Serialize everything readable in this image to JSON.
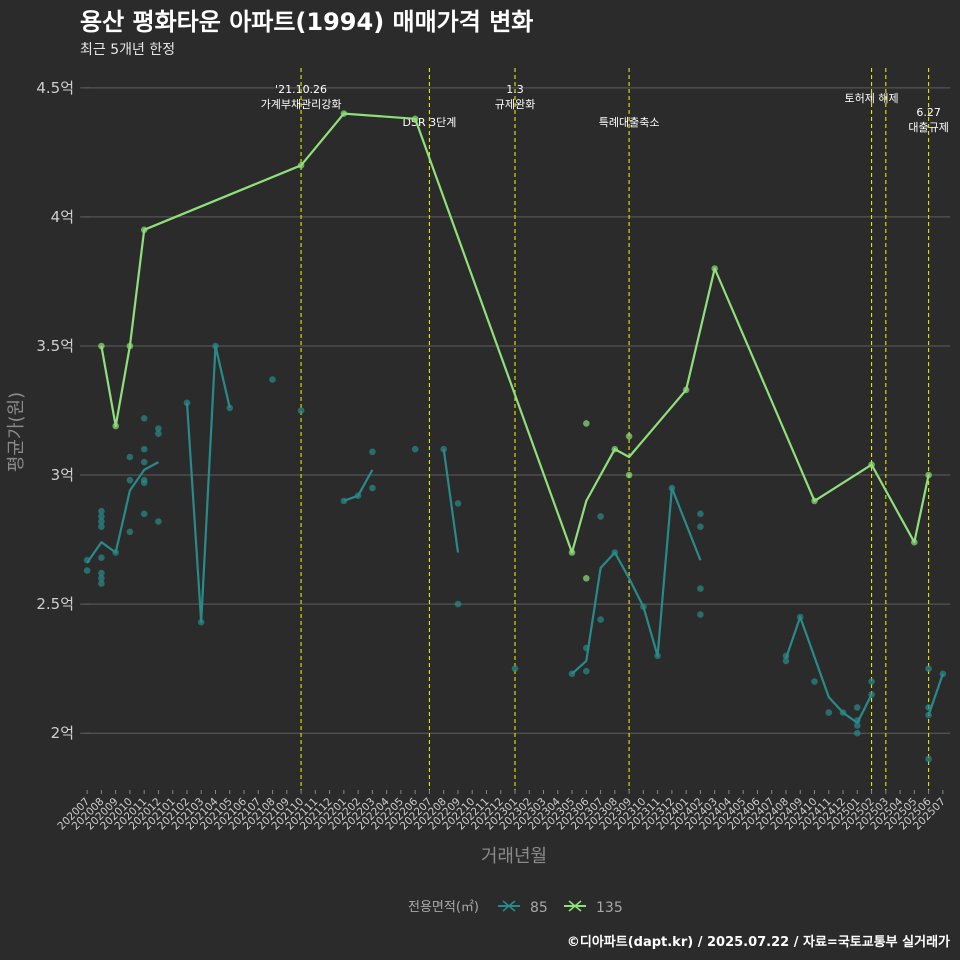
{
  "title": "용산 평화타운 아파트(1994) 매매가격 변화",
  "subtitle": "최근 5개년 한정",
  "caption": "©디아파트(dapt.kr) / 2025.07.22 / 자료=국토교통부 실거래가",
  "legend": {
    "title": "전용면적(㎡)",
    "items": [
      "85",
      "135"
    ]
  },
  "colors": {
    "background": "#2b2b2b",
    "grid": "#5e5e5e",
    "event_line": "#e6e600",
    "s85": "#2a8a8a",
    "s135": "#8fe07a"
  },
  "chart_data": {
    "type": "line",
    "xlabel": "거래년월",
    "ylabel": "평균가(원)",
    "ylim": [
      1.78,
      4.6
    ],
    "y_ticks": [
      2.0,
      2.5,
      3.0,
      3.5,
      4.0,
      4.5
    ],
    "y_tick_labels": [
      "2억",
      "2.5억",
      "3억",
      "3.5억",
      "4억",
      "4.5억"
    ],
    "x_categories": [
      "202007",
      "202008",
      "202009",
      "202010",
      "202011",
      "202012",
      "202101",
      "202102",
      "202103",
      "202104",
      "202105",
      "202106",
      "202107",
      "202108",
      "202109",
      "202110",
      "202111",
      "202112",
      "202201",
      "202202",
      "202203",
      "202204",
      "202205",
      "202206",
      "202207",
      "202208",
      "202209",
      "202210",
      "202211",
      "202212",
      "202301",
      "202302",
      "202303",
      "202304",
      "202305",
      "202306",
      "202307",
      "202308",
      "202309",
      "202310",
      "202311",
      "202312",
      "202401",
      "202402",
      "202403",
      "202404",
      "202405",
      "202406",
      "202407",
      "202408",
      "202409",
      "202410",
      "202411",
      "202412",
      "202501",
      "202502",
      "202503",
      "202504",
      "202505",
      "202506",
      "202507"
    ],
    "events": [
      {
        "x": "202110",
        "label": "'21.10.26\n가계부채관리강화",
        "level": 0
      },
      {
        "x": "202207",
        "label": "DSR 3단계",
        "level": 2
      },
      {
        "x": "202301",
        "label": "1.3\n규제완화",
        "level": 0
      },
      {
        "x": "202309",
        "label": "특례대출축소",
        "level": 2
      },
      {
        "x": "202502",
        "label": "토허제 해제",
        "level": 1
      },
      {
        "x": "202503",
        "label": "",
        "level": 1
      },
      {
        "x": "202506",
        "label": "6.27\n대출규제",
        "level": 3
      }
    ],
    "series": [
      {
        "name": "85",
        "line_segments": [
          [
            [
              "202007",
              2.66
            ],
            [
              "202008",
              2.74
            ],
            [
              "202009",
              2.7
            ],
            [
              "202010",
              2.94
            ],
            [
              "202011",
              3.02
            ],
            [
              "202012",
              3.05
            ]
          ],
          [
            [
              "202102",
              3.28
            ],
            [
              "202103",
              2.43
            ],
            [
              "202104",
              3.5
            ],
            [
              "202105",
              3.26
            ]
          ],
          [
            [
              "202201",
              2.9
            ],
            [
              "202202",
              2.92
            ],
            [
              "202203",
              3.02
            ]
          ],
          [
            [
              "202208",
              3.1
            ],
            [
              "202209",
              2.7
            ]
          ],
          [
            [
              "202305",
              2.23
            ],
            [
              "202306",
              2.28
            ],
            [
              "202307",
              2.64
            ],
            [
              "202308",
              2.7
            ],
            [
              "202309",
              2.6
            ],
            [
              "202310",
              2.49
            ],
            [
              "202311",
              2.3
            ],
            [
              "202312",
              2.95
            ],
            [
              "202402",
              2.67
            ]
          ],
          [
            [
              "202408",
              2.29
            ],
            [
              "202409",
              2.45
            ],
            [
              "202411",
              2.14
            ],
            [
              "202412",
              2.08
            ],
            [
              "202501",
              2.04
            ],
            [
              "202502",
              2.15
            ]
          ],
          [
            [
              "202506",
              2.07
            ],
            [
              "202507",
              2.23
            ]
          ]
        ],
        "points": [
          [
            "202007",
            2.67
          ],
          [
            "202007",
            2.63
          ],
          [
            "202008",
            2.86
          ],
          [
            "202008",
            2.84
          ],
          [
            "202008",
            2.82
          ],
          [
            "202008",
            2.8
          ],
          [
            "202008",
            2.68
          ],
          [
            "202008",
            2.62
          ],
          [
            "202008",
            2.6
          ],
          [
            "202008",
            2.58
          ],
          [
            "202009",
            2.7
          ],
          [
            "202010",
            3.07
          ],
          [
            "202010",
            2.98
          ],
          [
            "202010",
            2.78
          ],
          [
            "202011",
            3.22
          ],
          [
            "202011",
            3.1
          ],
          [
            "202011",
            3.05
          ],
          [
            "202011",
            2.98
          ],
          [
            "202011",
            2.97
          ],
          [
            "202011",
            2.85
          ],
          [
            "202012",
            3.18
          ],
          [
            "202012",
            3.16
          ],
          [
            "202012",
            2.82
          ],
          [
            "202102",
            3.28
          ],
          [
            "202103",
            2.43
          ],
          [
            "202104",
            3.5
          ],
          [
            "202105",
            3.26
          ],
          [
            "202108",
            3.37
          ],
          [
            "202110",
            3.25
          ],
          [
            "202201",
            2.9
          ],
          [
            "202202",
            2.92
          ],
          [
            "202203",
            3.09
          ],
          [
            "202203",
            2.95
          ],
          [
            "202206",
            3.1
          ],
          [
            "202208",
            3.1
          ],
          [
            "202209",
            2.89
          ],
          [
            "202209",
            2.5
          ],
          [
            "202301",
            2.25
          ],
          [
            "202305",
            2.23
          ],
          [
            "202306",
            2.33
          ],
          [
            "202306",
            2.24
          ],
          [
            "202307",
            2.84
          ],
          [
            "202307",
            2.44
          ],
          [
            "202308",
            2.7
          ],
          [
            "202310",
            2.49
          ],
          [
            "202311",
            2.3
          ],
          [
            "202312",
            2.95
          ],
          [
            "202402",
            2.85
          ],
          [
            "202402",
            2.8
          ],
          [
            "202402",
            2.56
          ],
          [
            "202402",
            2.46
          ],
          [
            "202408",
            2.3
          ],
          [
            "202408",
            2.28
          ],
          [
            "202409",
            2.45
          ],
          [
            "202410",
            2.2
          ],
          [
            "202411",
            2.08
          ],
          [
            "202412",
            2.08
          ],
          [
            "202501",
            2.1
          ],
          [
            "202501",
            2.05
          ],
          [
            "202501",
            2.03
          ],
          [
            "202501",
            2.0
          ],
          [
            "202502",
            2.2
          ],
          [
            "202502",
            2.15
          ],
          [
            "202506",
            2.25
          ],
          [
            "202506",
            2.1
          ],
          [
            "202506",
            2.07
          ],
          [
            "202506",
            1.9
          ],
          [
            "202507",
            2.23
          ]
        ]
      },
      {
        "name": "135",
        "line_segments": [
          [
            [
              "202008",
              3.5
            ],
            [
              "202009",
              3.19
            ],
            [
              "202010",
              3.5
            ],
            [
              "202011",
              3.95
            ],
            [
              "202110",
              4.2
            ],
            [
              "202201",
              4.4
            ],
            [
              "202206",
              4.38
            ],
            [
              "202305",
              2.7
            ],
            [
              "202306",
              2.9
            ],
            [
              "202308",
              3.1
            ],
            [
              "202309",
              3.07
            ],
            [
              "202401",
              3.33
            ],
            [
              "202403",
              3.8
            ],
            [
              "202410",
              2.9
            ],
            [
              "202502",
              3.04
            ],
            [
              "202505",
              2.74
            ],
            [
              "202506",
              3.0
            ]
          ]
        ],
        "points": [
          [
            "202008",
            3.5
          ],
          [
            "202009",
            3.19
          ],
          [
            "202010",
            3.5
          ],
          [
            "202011",
            3.95
          ],
          [
            "202110",
            4.2
          ],
          [
            "202201",
            4.4
          ],
          [
            "202206",
            4.38
          ],
          [
            "202305",
            2.7
          ],
          [
            "202306",
            3.2
          ],
          [
            "202306",
            2.6
          ],
          [
            "202308",
            3.1
          ],
          [
            "202309",
            3.15
          ],
          [
            "202309",
            3.0
          ],
          [
            "202401",
            3.33
          ],
          [
            "202403",
            3.8
          ],
          [
            "202410",
            2.9
          ],
          [
            "202502",
            3.04
          ],
          [
            "202505",
            2.74
          ],
          [
            "202506",
            3.0
          ]
        ]
      }
    ]
  }
}
